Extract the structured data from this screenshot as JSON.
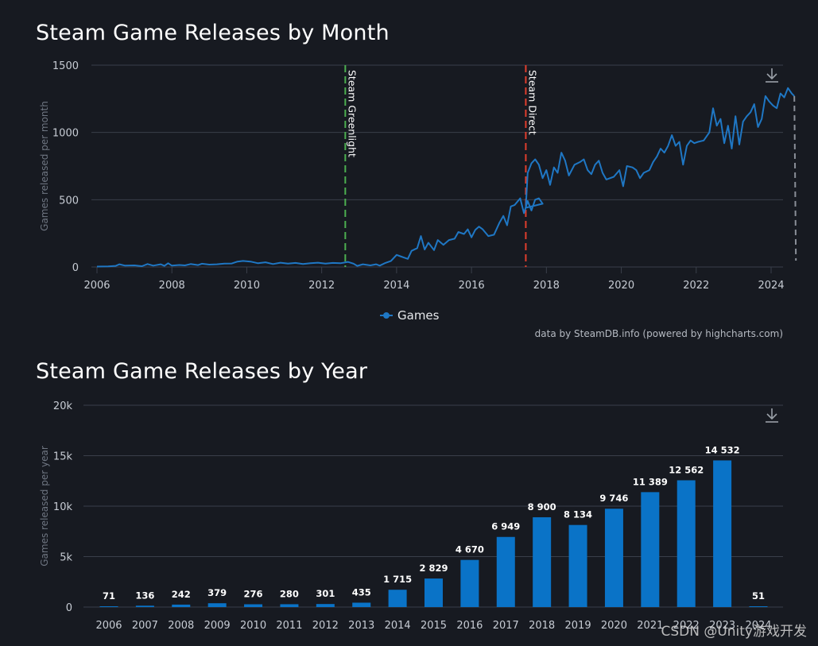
{
  "page": {
    "watermark": "CSDN @Unity游戏开发"
  },
  "chart_data": [
    {
      "type": "line",
      "title": "Steam Game Releases by Month",
      "ylabel": "Games released per month",
      "xlabel": "",
      "ylim": [
        0,
        1500
      ],
      "yticks": [
        0,
        500,
        1000,
        1500
      ],
      "xlim": [
        2006,
        2024.2
      ],
      "xticks": [
        2006,
        2008,
        2010,
        2012,
        2014,
        2016,
        2018,
        2020,
        2022,
        2024
      ],
      "legend": "Games",
      "credit": "data by SteamDB.info (powered by highcharts.com)",
      "annotations": [
        {
          "x": 2012.63,
          "label": "Steam Greenlight",
          "color": "#4caf50"
        },
        {
          "x": 2017.45,
          "label": "Steam Direct",
          "color": "#e03e2d"
        }
      ],
      "series": [
        {
          "name": "Games",
          "color": "#1f77c4",
          "points": [
            [
              2006.0,
              3
            ],
            [
              2006.3,
              5
            ],
            [
              2006.5,
              8
            ],
            [
              2006.6,
              20
            ],
            [
              2006.75,
              10
            ],
            [
              2007.0,
              12
            ],
            [
              2007.2,
              6
            ],
            [
              2007.35,
              22
            ],
            [
              2007.5,
              10
            ],
            [
              2007.7,
              20
            ],
            [
              2007.8,
              8
            ],
            [
              2007.9,
              28
            ],
            [
              2008.0,
              10
            ],
            [
              2008.2,
              15
            ],
            [
              2008.35,
              12
            ],
            [
              2008.5,
              22
            ],
            [
              2008.7,
              14
            ],
            [
              2008.8,
              24
            ],
            [
              2009.0,
              18
            ],
            [
              2009.2,
              20
            ],
            [
              2009.4,
              25
            ],
            [
              2009.6,
              26
            ],
            [
              2009.75,
              40
            ],
            [
              2009.9,
              45
            ],
            [
              2010.1,
              40
            ],
            [
              2010.3,
              28
            ],
            [
              2010.5,
              35
            ],
            [
              2010.7,
              22
            ],
            [
              2010.9,
              32
            ],
            [
              2011.1,
              25
            ],
            [
              2011.3,
              30
            ],
            [
              2011.5,
              22
            ],
            [
              2011.7,
              28
            ],
            [
              2011.9,
              32
            ],
            [
              2012.1,
              25
            ],
            [
              2012.3,
              30
            ],
            [
              2012.5,
              28
            ],
            [
              2012.7,
              38
            ],
            [
              2012.85,
              25
            ],
            [
              2012.95,
              8
            ],
            [
              2013.1,
              20
            ],
            [
              2013.3,
              12
            ],
            [
              2013.45,
              20
            ],
            [
              2013.55,
              10
            ],
            [
              2013.7,
              30
            ],
            [
              2013.85,
              45
            ],
            [
              2014.0,
              90
            ],
            [
              2014.1,
              80
            ],
            [
              2014.3,
              60
            ],
            [
              2014.4,
              120
            ],
            [
              2014.55,
              140
            ],
            [
              2014.65,
              230
            ],
            [
              2014.75,
              130
            ],
            [
              2014.85,
              180
            ],
            [
              2015.0,
              125
            ],
            [
              2015.1,
              200
            ],
            [
              2015.25,
              165
            ],
            [
              2015.4,
              200
            ],
            [
              2015.55,
              210
            ],
            [
              2015.65,
              260
            ],
            [
              2015.8,
              245
            ],
            [
              2015.9,
              280
            ],
            [
              2016.0,
              220
            ],
            [
              2016.1,
              275
            ],
            [
              2016.2,
              300
            ],
            [
              2016.3,
              280
            ],
            [
              2016.45,
              230
            ],
            [
              2016.6,
              240
            ],
            [
              2016.75,
              330
            ],
            [
              2016.85,
              380
            ],
            [
              2016.95,
              310
            ],
            [
              2017.05,
              450
            ],
            [
              2017.15,
              460
            ],
            [
              2017.3,
              510
            ],
            [
              2017.4,
              400
            ],
            [
              2017.5,
              490
            ],
            [
              2017.6,
              420
            ],
            [
              2017.7,
              500
            ],
            [
              2017.8,
              510
            ],
            [
              2017.9,
              470
            ],
            [
              2017.45,
              440
            ],
            [
              2017.5,
              700
            ],
            [
              2017.6,
              770
            ],
            [
              2017.7,
              800
            ],
            [
              2017.8,
              760
            ],
            [
              2017.9,
              660
            ],
            [
              2018.0,
              720
            ],
            [
              2018.1,
              610
            ],
            [
              2018.2,
              740
            ],
            [
              2018.3,
              700
            ],
            [
              2018.4,
              850
            ],
            [
              2018.5,
              790
            ],
            [
              2018.6,
              680
            ],
            [
              2018.75,
              760
            ],
            [
              2018.9,
              780
            ],
            [
              2019.0,
              800
            ],
            [
              2019.1,
              720
            ],
            [
              2019.2,
              690
            ],
            [
              2019.3,
              760
            ],
            [
              2019.4,
              790
            ],
            [
              2019.5,
              700
            ],
            [
              2019.6,
              650
            ],
            [
              2019.8,
              670
            ],
            [
              2019.95,
              720
            ],
            [
              2020.05,
              600
            ],
            [
              2020.15,
              750
            ],
            [
              2020.3,
              740
            ],
            [
              2020.4,
              720
            ],
            [
              2020.5,
              660
            ],
            [
              2020.6,
              700
            ],
            [
              2020.75,
              720
            ],
            [
              2020.85,
              780
            ],
            [
              2020.95,
              820
            ],
            [
              2021.05,
              880
            ],
            [
              2021.15,
              850
            ],
            [
              2021.25,
              900
            ],
            [
              2021.35,
              980
            ],
            [
              2021.45,
              900
            ],
            [
              2021.55,
              930
            ],
            [
              2021.65,
              760
            ],
            [
              2021.75,
              900
            ],
            [
              2021.85,
              940
            ],
            [
              2021.95,
              920
            ],
            [
              2022.05,
              930
            ],
            [
              2022.2,
              940
            ],
            [
              2022.35,
              1000
            ],
            [
              2022.45,
              1180
            ],
            [
              2022.55,
              1050
            ],
            [
              2022.65,
              1100
            ],
            [
              2022.75,
              920
            ],
            [
              2022.85,
              1050
            ],
            [
              2022.95,
              880
            ],
            [
              2023.05,
              1120
            ],
            [
              2023.15,
              910
            ],
            [
              2023.25,
              1080
            ],
            [
              2023.35,
              1120
            ],
            [
              2023.45,
              1150
            ],
            [
              2023.55,
              1210
            ],
            [
              2023.65,
              1040
            ],
            [
              2023.75,
              1100
            ],
            [
              2023.85,
              1270
            ],
            [
              2023.95,
              1230
            ],
            [
              2024.05,
              1200
            ],
            [
              2024.15,
              1180
            ],
            [
              2024.25,
              1290
            ],
            [
              2024.35,
              1260
            ],
            [
              2024.45,
              1330
            ],
            [
              2024.55,
              1290
            ],
            [
              2024.62,
              1270
            ]
          ]
        }
      ]
    },
    {
      "type": "bar",
      "title": "Steam Game Releases by Year",
      "ylabel": "Games released per year",
      "xlabel": "",
      "ylim": [
        0,
        20000
      ],
      "yticks": [
        0,
        5000,
        10000,
        15000,
        20000
      ],
      "ytick_labels": [
        "0",
        "5k",
        "10k",
        "15k",
        "20k"
      ],
      "categories": [
        "2006",
        "2007",
        "2008",
        "2009",
        "2010",
        "2011",
        "2012",
        "2013",
        "2014",
        "2015",
        "2016",
        "2017",
        "2018",
        "2019",
        "2020",
        "2021",
        "2022",
        "2023",
        "2024"
      ],
      "values": [
        71,
        136,
        242,
        379,
        276,
        280,
        301,
        435,
        1715,
        2829,
        4670,
        6949,
        8900,
        8134,
        9746,
        11389,
        12562,
        14532,
        51
      ],
      "labels": [
        "71",
        "136",
        "242",
        "379",
        "276",
        "280",
        "301",
        "435",
        "1 715",
        "2 829",
        "4 670",
        "6 949",
        "8 900",
        "8 134",
        "9 746",
        "11 389",
        "12 562",
        "14 532",
        "51"
      ],
      "color": "#0a73c7"
    }
  ],
  "colors": {
    "background": "#171a21",
    "grid": "#3a3f4a",
    "axis_text": "#c7ccd4",
    "ylabel_text": "#6f7682",
    "line": "#1f77c4",
    "bar": "#0a73c7"
  }
}
